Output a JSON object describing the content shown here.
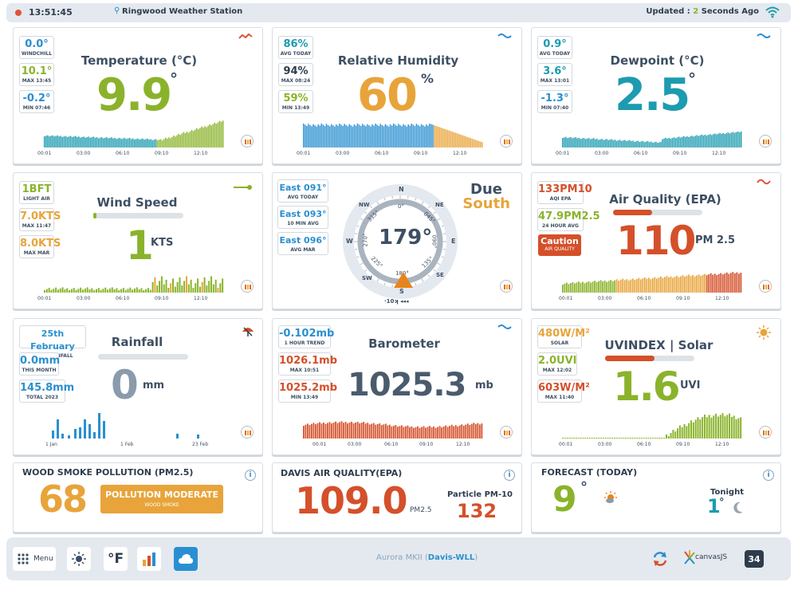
{
  "header": {
    "time": "13:51:45",
    "location": "Ringwood Weather Station",
    "updated_prefix": "Updated : ",
    "updated_num": "2",
    "updated_suffix": " Seconds Ago"
  },
  "temperature": {
    "title": "Temperature (°C)",
    "value": "9.9",
    "deg": "°",
    "trend": "~",
    "boxes": [
      {
        "v": "0.0°",
        "l": "WINDCHILL",
        "c": "#2a8fd0"
      },
      {
        "v": "10.1°",
        "l": "MAX 13:45",
        "c": "#8ab32b"
      },
      {
        "v": "-0.2°",
        "l": "MIN 07:46",
        "c": "#2a8fd0"
      }
    ],
    "ticks": [
      "00:01",
      "03:00",
      "06:10",
      "09:10",
      "12:10"
    ]
  },
  "humidity": {
    "title": "Relative Humidity",
    "value": "60",
    "unit": "%",
    "boxes": [
      {
        "v": "86%",
        "l": "AVG TODAY",
        "c": "#1d9bb0"
      },
      {
        "v": "94%",
        "l": "MAX 08:24",
        "c": "#2e3c4c"
      },
      {
        "v": "59%",
        "l": "MIN 13:49",
        "c": "#8ab32b"
      }
    ],
    "ticks": [
      "00:01",
      "03:00",
      "06:10",
      "09:10",
      "12:10"
    ]
  },
  "dewpoint": {
    "title": "Dewpoint (°C)",
    "value": "2.5",
    "deg": "°",
    "boxes": [
      {
        "v": "0.9°",
        "l": "AVG TODAY",
        "c": "#1d9bb0"
      },
      {
        "v": "3.6°",
        "l": "MAX 13:01",
        "c": "#1d9bb0"
      },
      {
        "v": "-1.3°",
        "l": "MIN 07:40",
        "c": "#2a8fd0"
      }
    ],
    "ticks": [
      "00:01",
      "03:00",
      "06:10",
      "09:10",
      "12:10"
    ]
  },
  "wind": {
    "title": "Wind Speed",
    "value": "1",
    "unit": "KTS",
    "boxes": [
      {
        "v": "1BFT",
        "l": "LIGHT AIR",
        "c": "#8ab32b"
      },
      {
        "v": "7.0KTS",
        "l": "MAX 11:47",
        "c": "#e8a43a"
      },
      {
        "v": "8.0KTS",
        "l": "MAX MAR",
        "c": "#e8a43a"
      }
    ],
    "ticks": [
      "00:01",
      "03:00",
      "06:10",
      "09:10",
      "12:10"
    ]
  },
  "compass": {
    "value": "179°",
    "heading_label_1": "Due",
    "heading_label_2": "South",
    "speed_label": "·10ʞ",
    "boxes": [
      {
        "v": "East 091°",
        "l": "AVG TODAY"
      },
      {
        "v": "East 093°",
        "l": "10 MIN AVG"
      },
      {
        "v": "East 096°",
        "l": "AVG MAR"
      }
    ],
    "cardinals": {
      "N": "N",
      "NE": "NE",
      "E": "E",
      "SE": "SE",
      "S": "S",
      "SW": "SW",
      "W": "W",
      "NW": "NW"
    },
    "degrees": [
      "0°",
      "045°",
      "090°",
      "135°",
      "180°",
      "225°",
      "270°",
      "315°"
    ]
  },
  "aq": {
    "title": "Air Quality (EPA)",
    "value": "110",
    "unit": "PM 2.5",
    "boxes": [
      {
        "v": "133PM10",
        "l": "AQI EPA",
        "c": "#d4502a"
      },
      {
        "v": "47.9PM2.5",
        "l": "24 HOUR AVG",
        "c": "#8ab32b"
      }
    ],
    "caution": "Caution",
    "caution_sub": "AIR QUALITY",
    "ticks": [
      "00:01",
      "03:00",
      "06:10",
      "09:10",
      "12:10"
    ]
  },
  "rain": {
    "title": "Rainfall",
    "value": "0",
    "unit": "mm",
    "boxes": [
      {
        "v": "25th February",
        "l": "LAST RAINFALL",
        "c": "#2a8fd0"
      },
      {
        "v": "0.0mm",
        "l": "THIS MONTH",
        "c": "#2a8fd0"
      },
      {
        "v": "145.8mm",
        "l": "TOTAL 2023",
        "c": "#2a8fd0"
      }
    ],
    "ticks": [
      "1 Jan",
      "1 Feb",
      "23 Feb"
    ]
  },
  "baro": {
    "title": "Barometer",
    "value": "1025.3",
    "unit": "mb",
    "boxes": [
      {
        "v": "-0.102mb",
        "l": "1 HOUR TREND",
        "c": "#2a8fd0"
      },
      {
        "v": "1026.1mb",
        "l": "MAX 10:51",
        "c": "#d4502a"
      },
      {
        "v": "1025.2mb",
        "l": "MIN 13:49",
        "c": "#d4502a"
      }
    ],
    "ticks": [
      "00:01",
      "03:00",
      "06:10",
      "09:10",
      "12:10"
    ]
  },
  "uv": {
    "title": "UVINDEX | Solar",
    "value": "1.6",
    "unit": "UVI",
    "boxes": [
      {
        "v": "480W/M²",
        "l": "SOLAR",
        "c": "#e8a43a"
      },
      {
        "v": "2.0UVI",
        "l": "MAX 12:02",
        "c": "#8ab32b"
      },
      {
        "v": "603W/M²",
        "l": "MAX 11:40",
        "c": "#d4502a"
      }
    ],
    "ticks": [
      "00:01",
      "03:00",
      "06:10",
      "09:10",
      "12:10"
    ]
  },
  "woodsmoke": {
    "title": "WOOD SMOKE POLLUTION (PM2.5)",
    "value": "68",
    "badge": "POLLUTION MODERATE",
    "badge_sub": "WOOD SMOKE"
  },
  "davis": {
    "title": "DAVIS AIR QUALITY(EPA)",
    "value": "109.0",
    "unit": "PM2.5",
    "pm10_label": "Particle PM-10",
    "pm10": "132"
  },
  "forecast": {
    "title": "FORECAST (TODAY)",
    "value": "9",
    "deg": "°",
    "tonight_label": "Tonight",
    "tonight": "1",
    "tonight_deg": "°"
  },
  "footer": {
    "menu": "Menu",
    "unit": "°F",
    "model": "Aurora MKII (",
    "model_link": "Davis-WLL",
    "model_end": ")",
    "canvas": "canvasJS",
    "badge": "34"
  },
  "colors": {
    "green": "#8ab32b",
    "orange": "#e8a43a",
    "teal": "#1d9bb0",
    "red": "#d4502a",
    "blue": "#2a8fd0"
  }
}
